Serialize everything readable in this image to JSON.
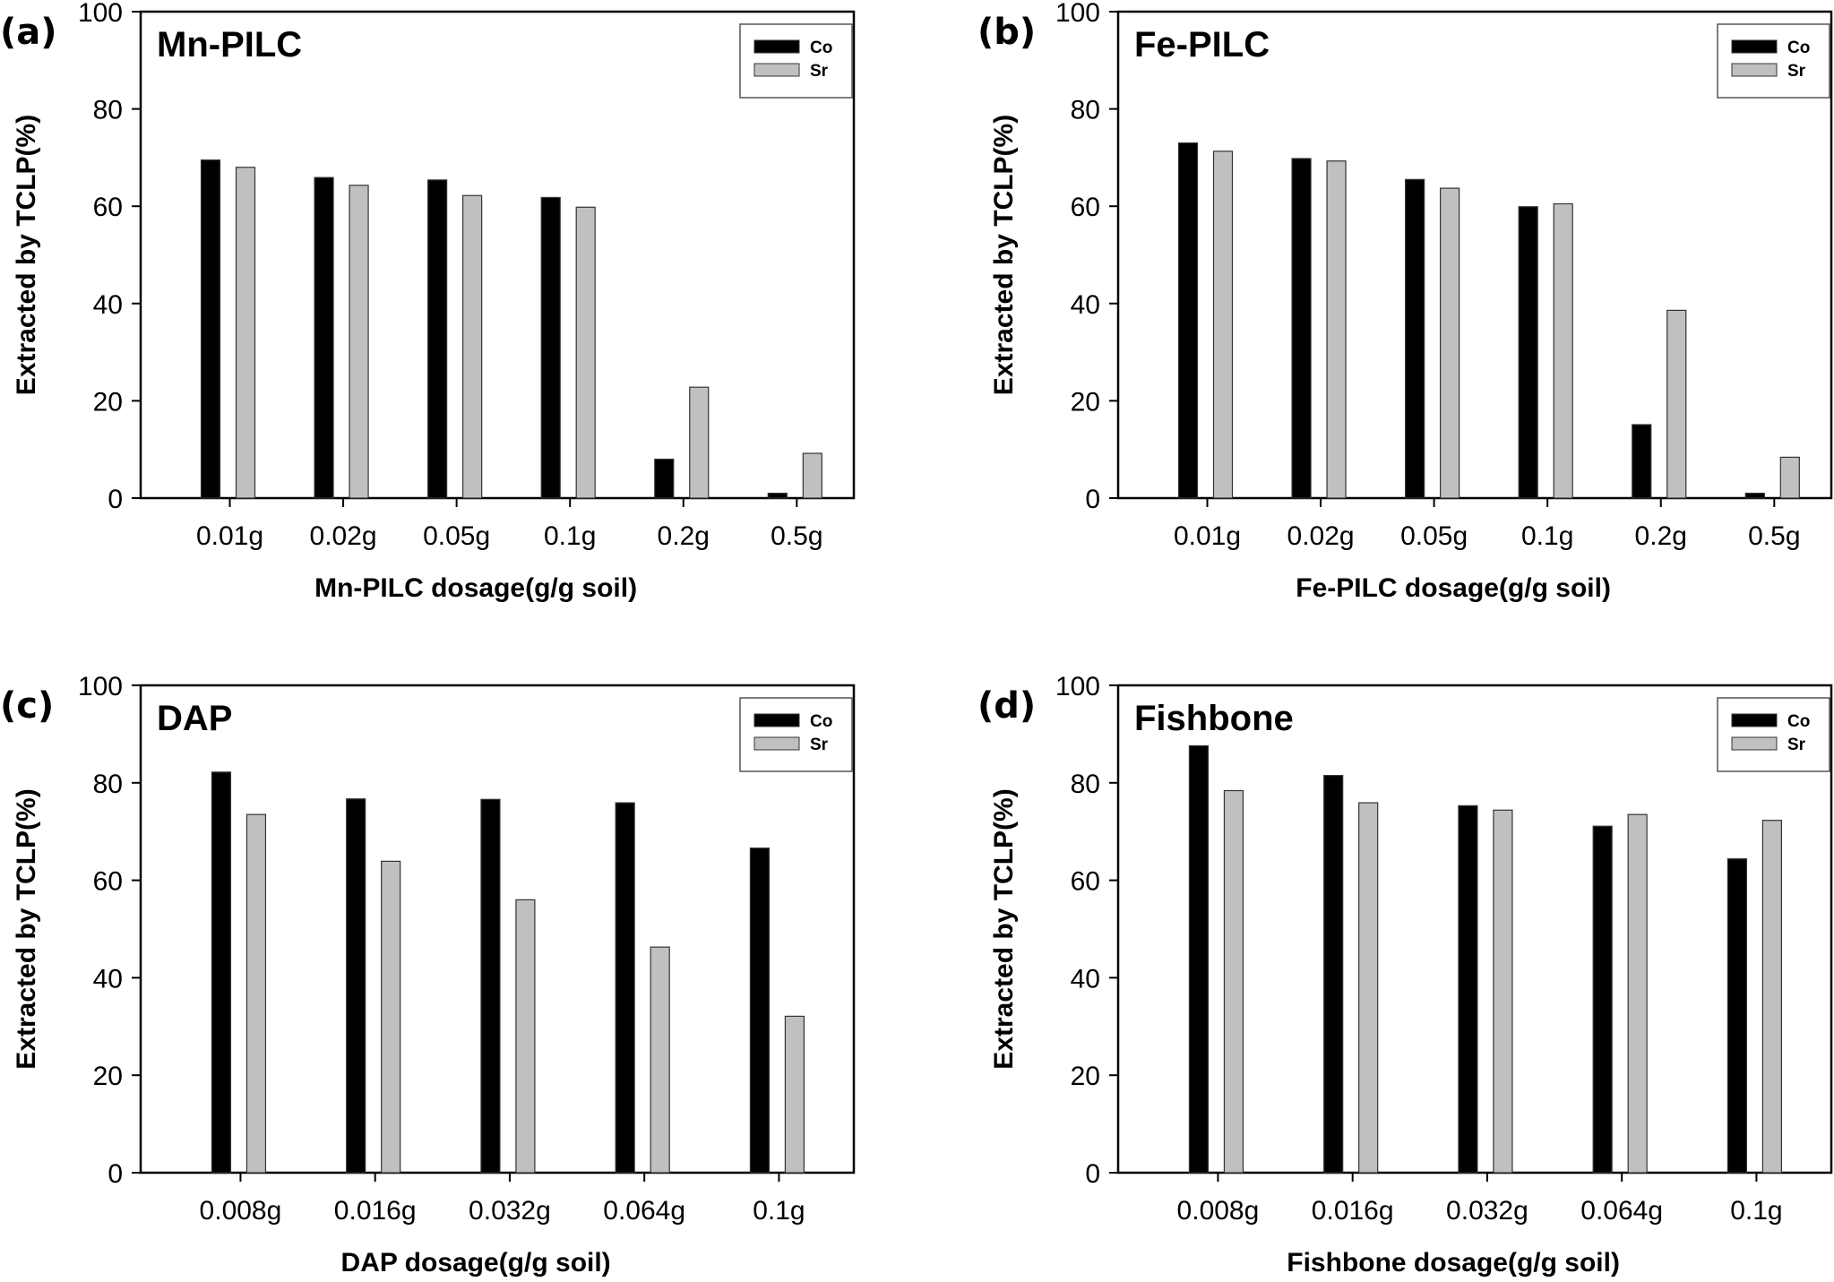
{
  "figure": {
    "series_colors": {
      "Co": "#000000",
      "Sr": "#c0c0c0"
    },
    "bar_outline": "#333333"
  },
  "chart_data": [
    {
      "type": "bar",
      "panel_label": "(a)",
      "title": "Mn-PILC",
      "xlabel": "Mn-PILC dosage(g/g soil)",
      "ylabel": "Extracted by TCLP(%)",
      "ylim": [
        0,
        100
      ],
      "yticks": [
        "0",
        "20",
        "40",
        "60",
        "80",
        "100"
      ],
      "categories": [
        "0.01g",
        "0.02g",
        "0.05g",
        "0.1g",
        "0.2g",
        "0.5g"
      ],
      "series": [
        {
          "name": "Co",
          "values": [
            69.5,
            65.9,
            65.4,
            61.8,
            8.0,
            1.0
          ]
        },
        {
          "name": "Sr",
          "values": [
            68.0,
            64.3,
            62.2,
            59.8,
            22.8,
            9.2
          ]
        }
      ],
      "legend": {
        "placement": "top-right",
        "entries": [
          "Co",
          "Sr"
        ]
      },
      "grid": false
    },
    {
      "type": "bar",
      "panel_label": "(b)",
      "title": "Fe-PILC",
      "xlabel": "Fe-PILC dosage(g/g soil)",
      "ylabel": "Extracted by TCLP(%)",
      "ylim": [
        0,
        100
      ],
      "yticks": [
        "0",
        "20",
        "40",
        "60",
        "80",
        "100"
      ],
      "categories": [
        "0.01g",
        "0.02g",
        "0.05g",
        "0.1g",
        "0.2g",
        "0.5g"
      ],
      "series": [
        {
          "name": "Co",
          "values": [
            73.0,
            69.8,
            65.5,
            59.9,
            15.1,
            1.0
          ]
        },
        {
          "name": "Sr",
          "values": [
            71.3,
            69.3,
            63.7,
            60.5,
            38.6,
            8.4
          ]
        }
      ],
      "legend": {
        "placement": "top-right",
        "entries": [
          "Co",
          "Sr"
        ]
      },
      "grid": false
    },
    {
      "type": "bar",
      "panel_label": "(c)",
      "title": "DAP",
      "xlabel": "DAP dosage(g/g soil)",
      "ylabel": "Extracted by TCLP(%)",
      "ylim": [
        0,
        100
      ],
      "yticks": [
        "0",
        "20",
        "40",
        "60",
        "80",
        "100"
      ],
      "categories": [
        "0.008g",
        "0.016g",
        "0.032g",
        "0.064g",
        "0.1g"
      ],
      "series": [
        {
          "name": "Co",
          "values": [
            82.2,
            76.7,
            76.6,
            75.9,
            66.6
          ]
        },
        {
          "name": "Sr",
          "values": [
            73.5,
            63.9,
            56.0,
            46.3,
            32.1
          ]
        }
      ],
      "legend": {
        "placement": "top-right",
        "entries": [
          "Co",
          "Sr"
        ]
      },
      "grid": false
    },
    {
      "type": "bar",
      "panel_label": "(d)",
      "title": "Fishbone",
      "xlabel": "Fishbone dosage(g/g soil)",
      "ylabel": "Extracted by TCLP(%)",
      "ylim": [
        0,
        100
      ],
      "yticks": [
        "0",
        "20",
        "40",
        "60",
        "80",
        "100"
      ],
      "categories": [
        "0.008g",
        "0.016g",
        "0.032g",
        "0.064g",
        "0.1g"
      ],
      "series": [
        {
          "name": "Co",
          "values": [
            87.6,
            81.5,
            75.3,
            71.1,
            64.4
          ]
        },
        {
          "name": "Sr",
          "values": [
            78.4,
            75.9,
            74.4,
            73.5,
            72.3
          ]
        }
      ],
      "legend": {
        "placement": "top-right",
        "entries": [
          "Co",
          "Sr"
        ]
      },
      "grid": false
    }
  ]
}
